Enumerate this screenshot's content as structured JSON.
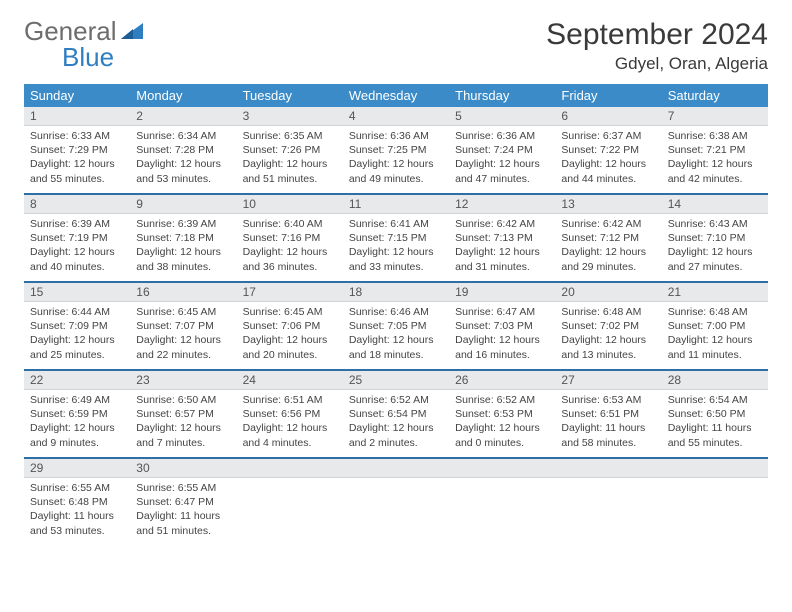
{
  "brand": {
    "word1": "General",
    "word2": "Blue"
  },
  "header": {
    "month": "September 2024",
    "location": "Gdyel, Oran, Algeria"
  },
  "style": {
    "header_bg": "#3b8bc8",
    "header_text": "#ffffff",
    "daynum_bg": "#e7e9eb",
    "week_border": "#2f6fa8",
    "body_text": "#444444",
    "title_color": "#3a3a3a",
    "logo_gray": "#6d6d6d",
    "logo_blue": "#2f7ec2",
    "font_family": "Arial",
    "month_fontsize": 30,
    "location_fontsize": 17,
    "dow_fontsize": 13,
    "cell_fontsize": 10.5
  },
  "dow": [
    "Sunday",
    "Monday",
    "Tuesday",
    "Wednesday",
    "Thursday",
    "Friday",
    "Saturday"
  ],
  "weeks": [
    [
      {
        "n": "1",
        "sr": "6:33 AM",
        "ss": "7:29 PM",
        "dl": "12 hours and 55 minutes."
      },
      {
        "n": "2",
        "sr": "6:34 AM",
        "ss": "7:28 PM",
        "dl": "12 hours and 53 minutes."
      },
      {
        "n": "3",
        "sr": "6:35 AM",
        "ss": "7:26 PM",
        "dl": "12 hours and 51 minutes."
      },
      {
        "n": "4",
        "sr": "6:36 AM",
        "ss": "7:25 PM",
        "dl": "12 hours and 49 minutes."
      },
      {
        "n": "5",
        "sr": "6:36 AM",
        "ss": "7:24 PM",
        "dl": "12 hours and 47 minutes."
      },
      {
        "n": "6",
        "sr": "6:37 AM",
        "ss": "7:22 PM",
        "dl": "12 hours and 44 minutes."
      },
      {
        "n": "7",
        "sr": "6:38 AM",
        "ss": "7:21 PM",
        "dl": "12 hours and 42 minutes."
      }
    ],
    [
      {
        "n": "8",
        "sr": "6:39 AM",
        "ss": "7:19 PM",
        "dl": "12 hours and 40 minutes."
      },
      {
        "n": "9",
        "sr": "6:39 AM",
        "ss": "7:18 PM",
        "dl": "12 hours and 38 minutes."
      },
      {
        "n": "10",
        "sr": "6:40 AM",
        "ss": "7:16 PM",
        "dl": "12 hours and 36 minutes."
      },
      {
        "n": "11",
        "sr": "6:41 AM",
        "ss": "7:15 PM",
        "dl": "12 hours and 33 minutes."
      },
      {
        "n": "12",
        "sr": "6:42 AM",
        "ss": "7:13 PM",
        "dl": "12 hours and 31 minutes."
      },
      {
        "n": "13",
        "sr": "6:42 AM",
        "ss": "7:12 PM",
        "dl": "12 hours and 29 minutes."
      },
      {
        "n": "14",
        "sr": "6:43 AM",
        "ss": "7:10 PM",
        "dl": "12 hours and 27 minutes."
      }
    ],
    [
      {
        "n": "15",
        "sr": "6:44 AM",
        "ss": "7:09 PM",
        "dl": "12 hours and 25 minutes."
      },
      {
        "n": "16",
        "sr": "6:45 AM",
        "ss": "7:07 PM",
        "dl": "12 hours and 22 minutes."
      },
      {
        "n": "17",
        "sr": "6:45 AM",
        "ss": "7:06 PM",
        "dl": "12 hours and 20 minutes."
      },
      {
        "n": "18",
        "sr": "6:46 AM",
        "ss": "7:05 PM",
        "dl": "12 hours and 18 minutes."
      },
      {
        "n": "19",
        "sr": "6:47 AM",
        "ss": "7:03 PM",
        "dl": "12 hours and 16 minutes."
      },
      {
        "n": "20",
        "sr": "6:48 AM",
        "ss": "7:02 PM",
        "dl": "12 hours and 13 minutes."
      },
      {
        "n": "21",
        "sr": "6:48 AM",
        "ss": "7:00 PM",
        "dl": "12 hours and 11 minutes."
      }
    ],
    [
      {
        "n": "22",
        "sr": "6:49 AM",
        "ss": "6:59 PM",
        "dl": "12 hours and 9 minutes."
      },
      {
        "n": "23",
        "sr": "6:50 AM",
        "ss": "6:57 PM",
        "dl": "12 hours and 7 minutes."
      },
      {
        "n": "24",
        "sr": "6:51 AM",
        "ss": "6:56 PM",
        "dl": "12 hours and 4 minutes."
      },
      {
        "n": "25",
        "sr": "6:52 AM",
        "ss": "6:54 PM",
        "dl": "12 hours and 2 minutes."
      },
      {
        "n": "26",
        "sr": "6:52 AM",
        "ss": "6:53 PM",
        "dl": "12 hours and 0 minutes."
      },
      {
        "n": "27",
        "sr": "6:53 AM",
        "ss": "6:51 PM",
        "dl": "11 hours and 58 minutes."
      },
      {
        "n": "28",
        "sr": "6:54 AM",
        "ss": "6:50 PM",
        "dl": "11 hours and 55 minutes."
      }
    ],
    [
      {
        "n": "29",
        "sr": "6:55 AM",
        "ss": "6:48 PM",
        "dl": "11 hours and 53 minutes."
      },
      {
        "n": "30",
        "sr": "6:55 AM",
        "ss": "6:47 PM",
        "dl": "11 hours and 51 minutes."
      },
      {
        "empty": true
      },
      {
        "empty": true
      },
      {
        "empty": true
      },
      {
        "empty": true
      },
      {
        "empty": true
      }
    ]
  ],
  "labels": {
    "sunrise": "Sunrise:",
    "sunset": "Sunset:",
    "daylight": "Daylight:"
  }
}
